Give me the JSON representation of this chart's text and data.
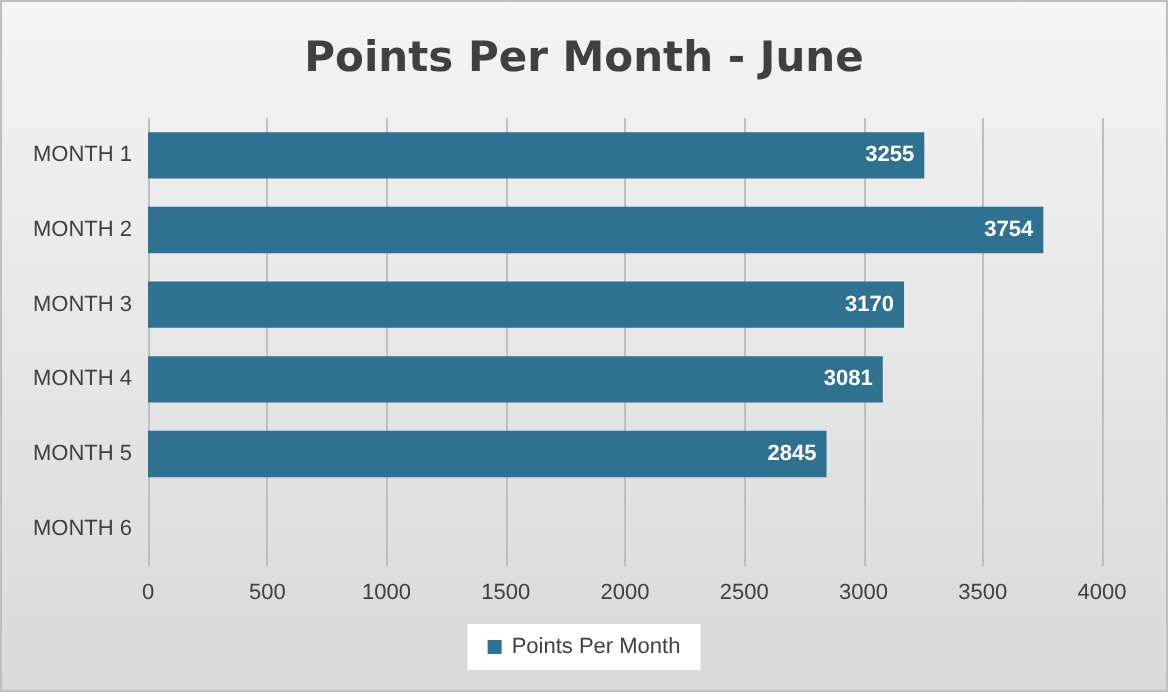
{
  "chart_data": {
    "type": "bar",
    "title": "Points Per Month - June",
    "orientation": "horizontal",
    "categories": [
      "MONTH 1",
      "MONTH 2",
      "MONTH 3",
      "MONTH 4",
      "MONTH 5",
      "MONTH 6"
    ],
    "series": [
      {
        "name": "Points Per Month",
        "color": "#2e7191",
        "values": [
          3255,
          3754,
          3170,
          3081,
          2845,
          null
        ]
      }
    ],
    "xlim": [
      0,
      4000
    ],
    "xticks": [
      0,
      500,
      1000,
      1500,
      2000,
      2500,
      3000,
      3500,
      4000
    ],
    "grid": "x",
    "legend": "bottom",
    "data_labels": true
  }
}
